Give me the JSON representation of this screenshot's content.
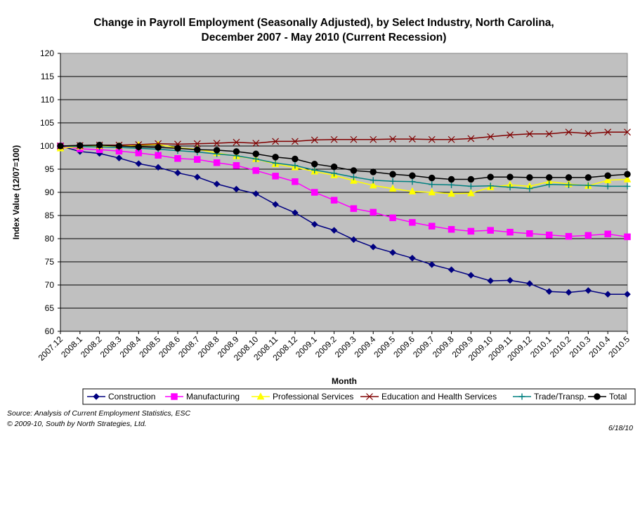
{
  "chart_data": {
    "type": "line",
    "title_line1": "Change in Payroll Employment (Seasonally Adjusted), by Select Industry, North Carolina,",
    "title_line2": "December 2007 - May 2010 (Current Recession)",
    "xlabel": "Month",
    "ylabel": "Index Value (12/07=100)",
    "ylim": [
      60,
      120
    ],
    "yticks": [
      "60",
      "65",
      "70",
      "75",
      "80",
      "85",
      "90",
      "95",
      "100",
      "105",
      "110",
      "115",
      "120"
    ],
    "ytick_values": [
      60,
      65,
      70,
      75,
      80,
      85,
      90,
      95,
      100,
      105,
      110,
      115,
      120
    ],
    "grid": "horizontal",
    "plot_background": "#c0c0c0",
    "legend_position": "bottom",
    "x": [
      "2007.12",
      "2008.1",
      "2008.2",
      "2008.3",
      "2008.4",
      "2008.5",
      "2008.6",
      "2008.7",
      "2008.8",
      "2008.9",
      "2008.10",
      "2008.11",
      "2008.12",
      "2009.1",
      "2009.2",
      "2009.3",
      "2009.4",
      "2009.5",
      "2009.6",
      "2009.7",
      "2009.8",
      "2009.9",
      "2009.10",
      "2009.11",
      "2009.12",
      "2010.1",
      "2010.2",
      "2010.3",
      "2010.4",
      "2010.5"
    ],
    "series": [
      {
        "name": "Construction",
        "color": "#000080",
        "marker": "diamond",
        "values": [
          100,
          98.8,
          98.4,
          97.4,
          96.2,
          95.4,
          94.2,
          93.3,
          91.8,
          90.7,
          89.7,
          87.4,
          85.6,
          83.1,
          81.8,
          79.8,
          78.2,
          77.0,
          75.8,
          74.4,
          73.3,
          72.1,
          70.9,
          71.0,
          70.3,
          68.6,
          68.4,
          68.8,
          68.0,
          68.0
        ]
      },
      {
        "name": "Manufacturing",
        "color": "#ff00ff",
        "marker": "square",
        "values": [
          100,
          99.4,
          99.2,
          98.9,
          98.5,
          98.0,
          97.3,
          97.1,
          96.4,
          95.8,
          94.7,
          93.5,
          92.3,
          90.0,
          88.3,
          86.5,
          85.7,
          84.5,
          83.5,
          82.7,
          82.0,
          81.6,
          81.8,
          81.4,
          81.1,
          80.8,
          80.5,
          80.7,
          81.0,
          80.4
        ]
      },
      {
        "name": "Professional Services",
        "color": "#ffff00",
        "marker": "triangle",
        "values": [
          99.5,
          99.9,
          100.0,
          100.0,
          100.2,
          100.3,
          99.6,
          99.3,
          98.5,
          97.8,
          97.2,
          96.1,
          95.4,
          94.5,
          93.7,
          92.5,
          91.5,
          90.8,
          90.2,
          90.0,
          89.7,
          89.8,
          91.1,
          91.6,
          91.3,
          92.3,
          91.8,
          91.4,
          92.6,
          92.8
        ]
      },
      {
        "name": "Education and Health Services",
        "color": "#800000",
        "marker": "x",
        "values": [
          100,
          100.1,
          100.2,
          100.2,
          100.3,
          100.5,
          100.4,
          100.5,
          100.6,
          100.8,
          100.6,
          101.0,
          101.0,
          101.3,
          101.4,
          101.4,
          101.4,
          101.5,
          101.5,
          101.4,
          101.4,
          101.6,
          102.0,
          102.4,
          102.6,
          102.6,
          103.0,
          102.7,
          103.0,
          103.0
        ]
      },
      {
        "name": "Trade/Transp.",
        "color": "#008080",
        "marker": "plus",
        "values": [
          100,
          99.9,
          99.8,
          99.7,
          99.5,
          99.3,
          99.0,
          98.7,
          98.3,
          97.9,
          97.2,
          96.3,
          95.8,
          94.8,
          94.1,
          93.3,
          92.6,
          92.4,
          92.3,
          91.7,
          91.6,
          91.3,
          91.4,
          91.1,
          90.8,
          91.7,
          91.6,
          91.5,
          91.3,
          91.3
        ]
      },
      {
        "name": "Total",
        "color": "#000000",
        "marker": "circle",
        "values": [
          100,
          100.1,
          100.2,
          100.0,
          99.8,
          99.7,
          99.5,
          99.2,
          99.1,
          98.8,
          98.3,
          97.6,
          97.2,
          96.1,
          95.5,
          94.7,
          94.4,
          93.9,
          93.6,
          93.1,
          92.8,
          92.8,
          93.3,
          93.3,
          93.2,
          93.2,
          93.2,
          93.2,
          93.6,
          93.9
        ]
      }
    ]
  },
  "footer": {
    "source": "Source: Analysis of Current Employment Statistics, ESC",
    "copyright": "© 2009-10, South by North Strategies, Ltd.",
    "date": "6/18/10"
  }
}
